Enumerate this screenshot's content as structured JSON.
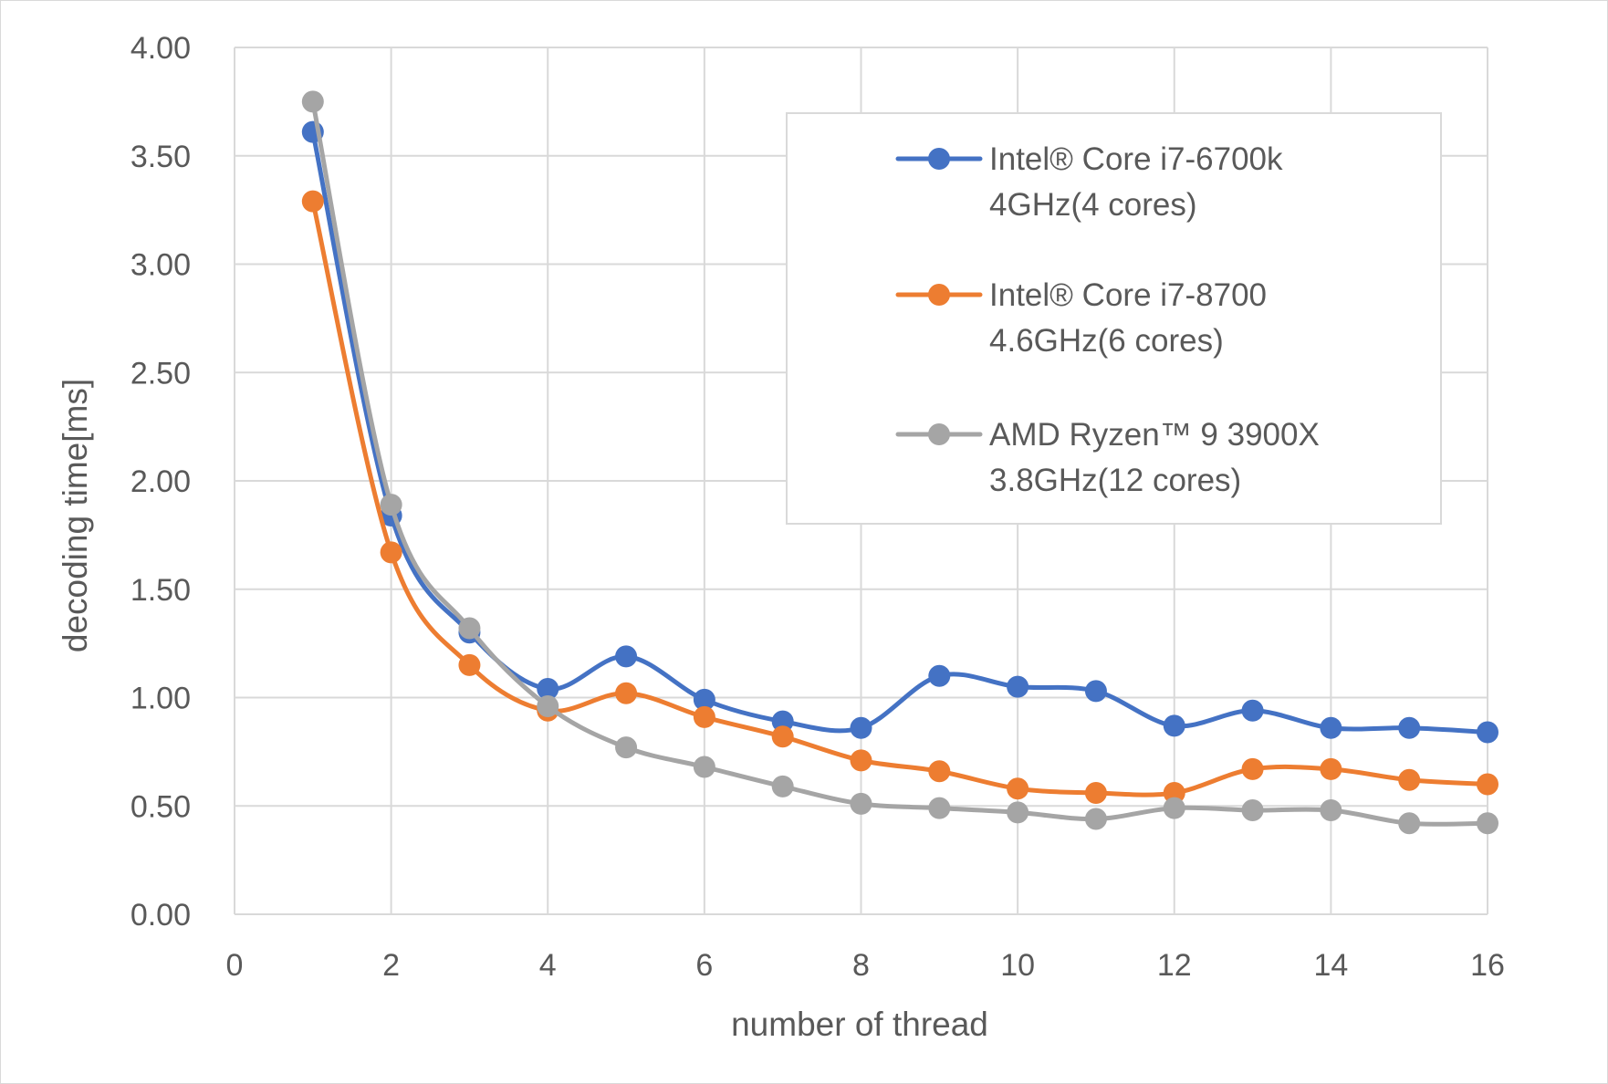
{
  "chart_data": {
    "type": "line",
    "title": "",
    "xlabel": "number of thread",
    "ylabel": "decoding time[ms]",
    "xlim": [
      0,
      16
    ],
    "ylim": [
      0,
      4
    ],
    "x_ticks": [
      "0",
      "2",
      "4",
      "6",
      "8",
      "10",
      "12",
      "14",
      "16"
    ],
    "y_ticks": [
      "0.00",
      "0.50",
      "1.00",
      "1.50",
      "2.00",
      "2.50",
      "3.00",
      "3.50",
      "4.00"
    ],
    "grid": true,
    "legend_position": "top-right",
    "smooth": true,
    "x": [
      1,
      2,
      3,
      4,
      5,
      6,
      7,
      8,
      9,
      10,
      11,
      12,
      13,
      14,
      15,
      16
    ],
    "series": [
      {
        "name_lines": [
          "Intel® Core i7-6700k",
          "4GHz(4 cores)"
        ],
        "color": "#4472c4",
        "values": [
          3.61,
          1.84,
          1.3,
          1.04,
          1.19,
          0.99,
          0.89,
          0.86,
          1.1,
          1.05,
          1.03,
          0.87,
          0.94,
          0.86,
          0.86,
          0.84
        ]
      },
      {
        "name_lines": [
          "Intel® Core i7-8700",
          "4.6GHz(6 cores)"
        ],
        "color": "#ed7d31",
        "values": [
          3.29,
          1.67,
          1.15,
          0.94,
          1.02,
          0.91,
          0.82,
          0.71,
          0.66,
          0.58,
          0.56,
          0.56,
          0.67,
          0.67,
          0.62,
          0.6
        ]
      },
      {
        "name_lines": [
          "AMD Ryzen™ 9 3900X",
          "3.8GHz(12 cores)"
        ],
        "color": "#a5a5a5",
        "values": [
          3.75,
          1.89,
          1.32,
          0.96,
          0.77,
          0.68,
          0.59,
          0.51,
          0.49,
          0.47,
          0.44,
          0.49,
          0.48,
          0.48,
          0.42,
          0.42
        ]
      }
    ]
  }
}
